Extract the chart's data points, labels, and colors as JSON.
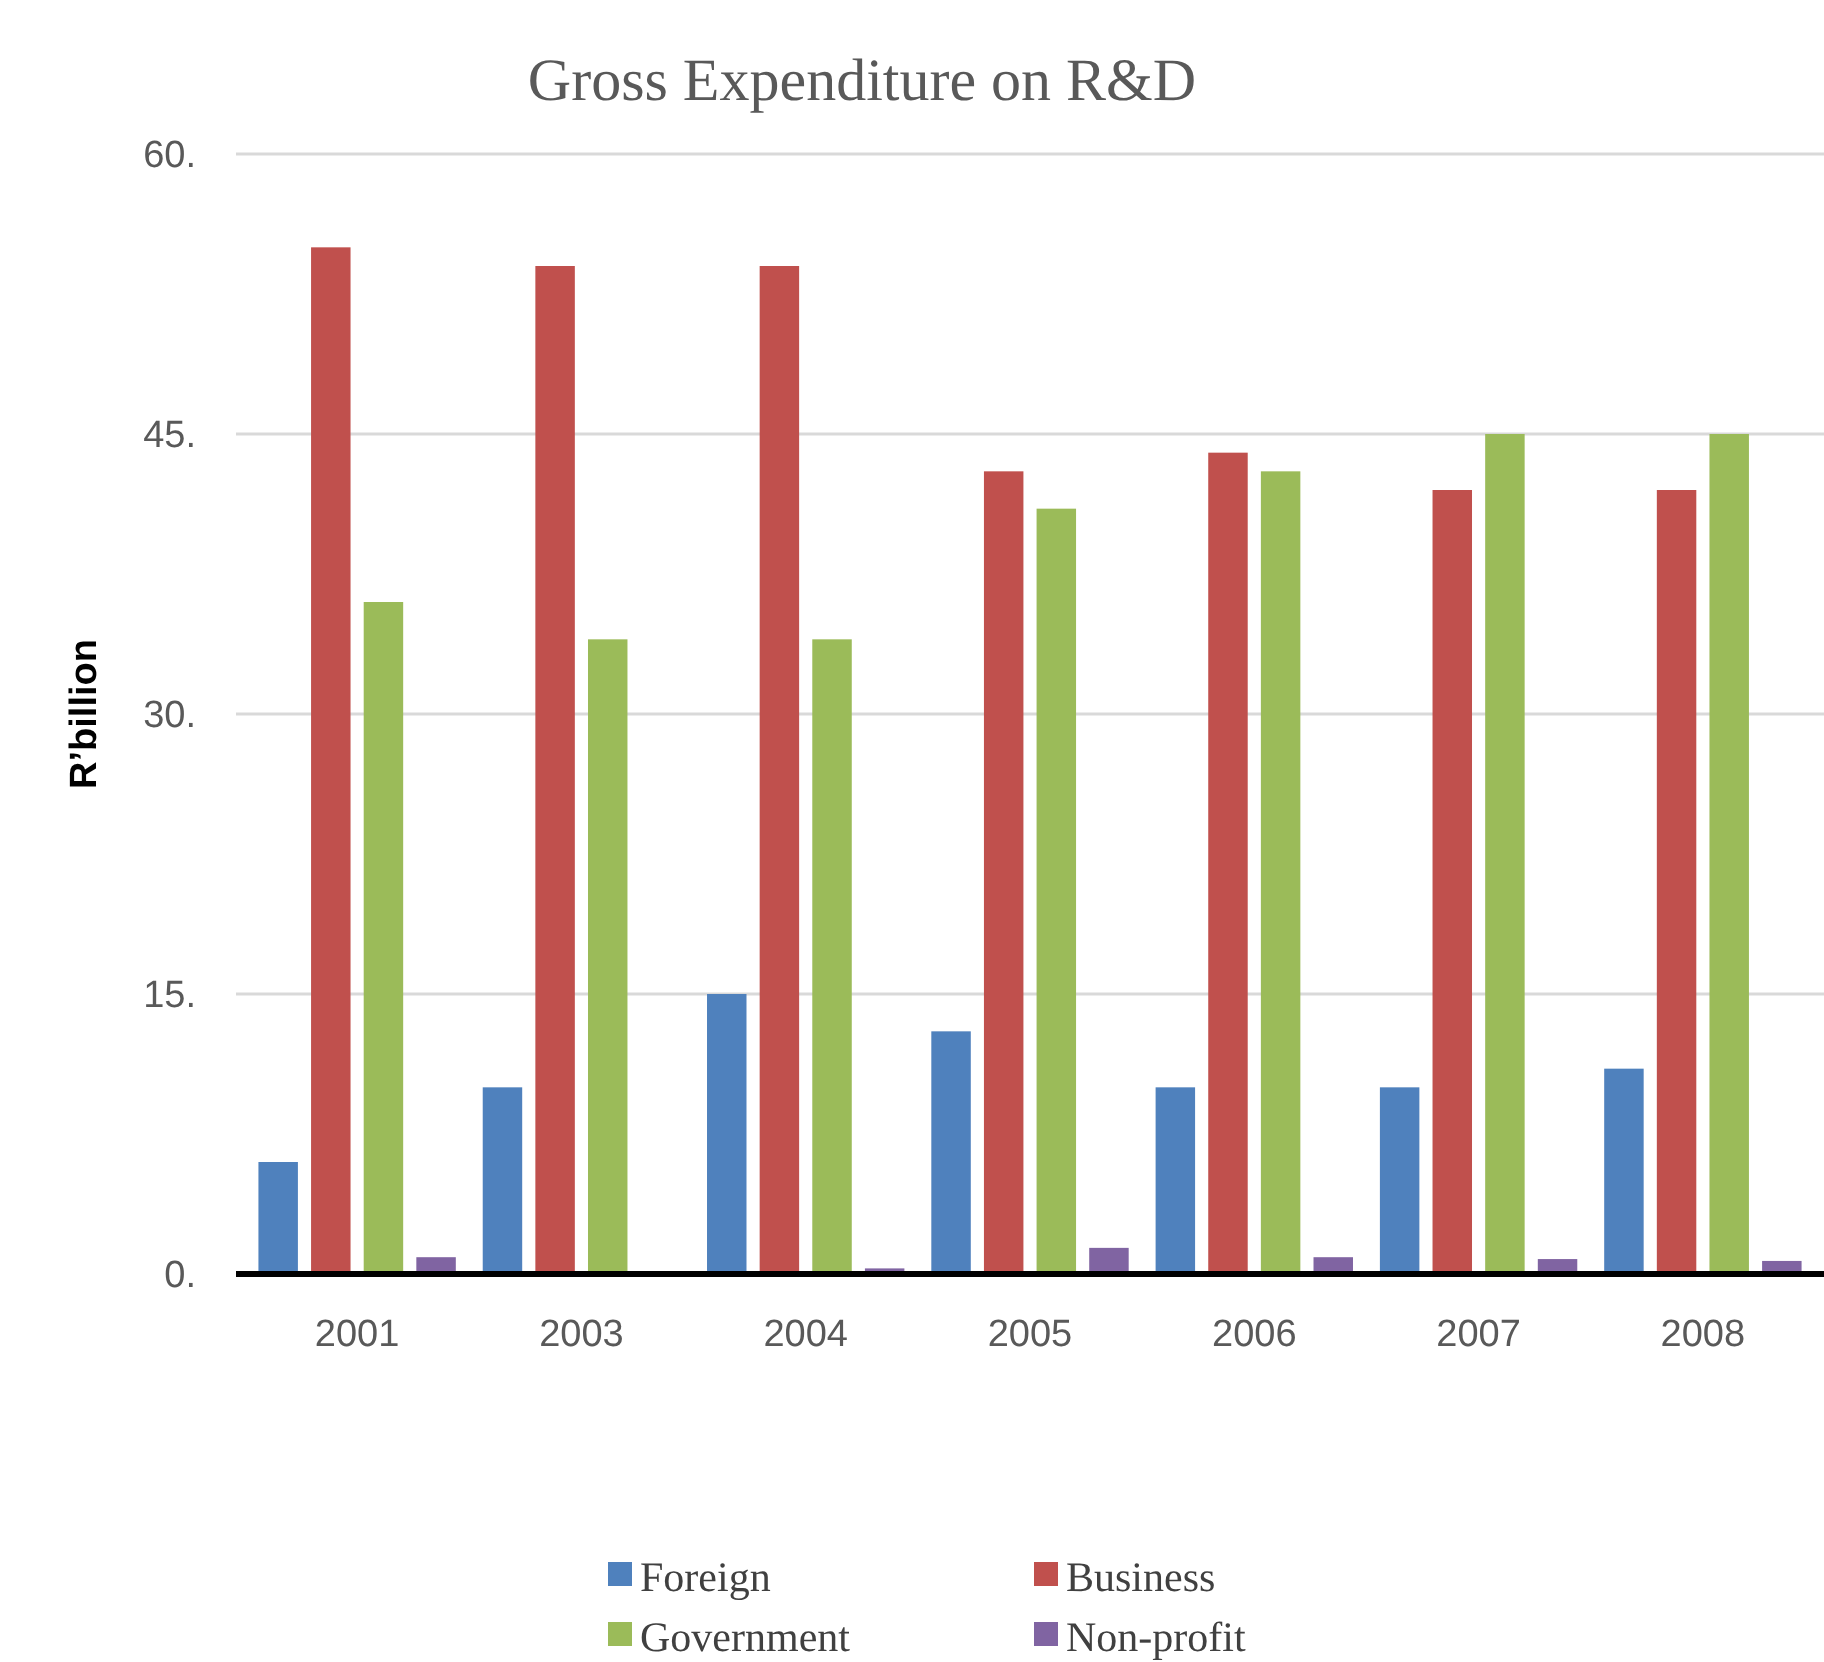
{
  "chart_data": {
    "type": "bar",
    "title": "Gross Expenditure on R&D",
    "ylabel": "R’billion",
    "categories": [
      "2001",
      "2003",
      "2004",
      "2005",
      "2006",
      "2007",
      "2008"
    ],
    "series": [
      {
        "name": "Foreign",
        "color": "#4f81bd",
        "values": [
          6,
          10,
          15,
          13,
          10,
          10,
          11
        ]
      },
      {
        "name": "Business",
        "color": "#c0504d",
        "values": [
          55,
          54,
          54,
          43,
          44,
          42,
          42
        ]
      },
      {
        "name": "Government",
        "color": "#9bbb59",
        "values": [
          36,
          34,
          34,
          41,
          43,
          45,
          45
        ]
      },
      {
        "name": "Non-profit",
        "color": "#8064a2",
        "values": [
          0.9,
          0,
          0.3,
          1.4,
          0.9,
          0.8,
          0.7
        ]
      }
    ],
    "ylim": [
      0,
      60
    ],
    "yticks": [
      {
        "value": 0,
        "label": "0."
      },
      {
        "value": 15,
        "label": "15."
      },
      {
        "value": 30,
        "label": "30."
      },
      {
        "value": 45,
        "label": "45."
      },
      {
        "value": 60,
        "label": "60."
      }
    ],
    "grid": "y",
    "legend": "bottom"
  }
}
